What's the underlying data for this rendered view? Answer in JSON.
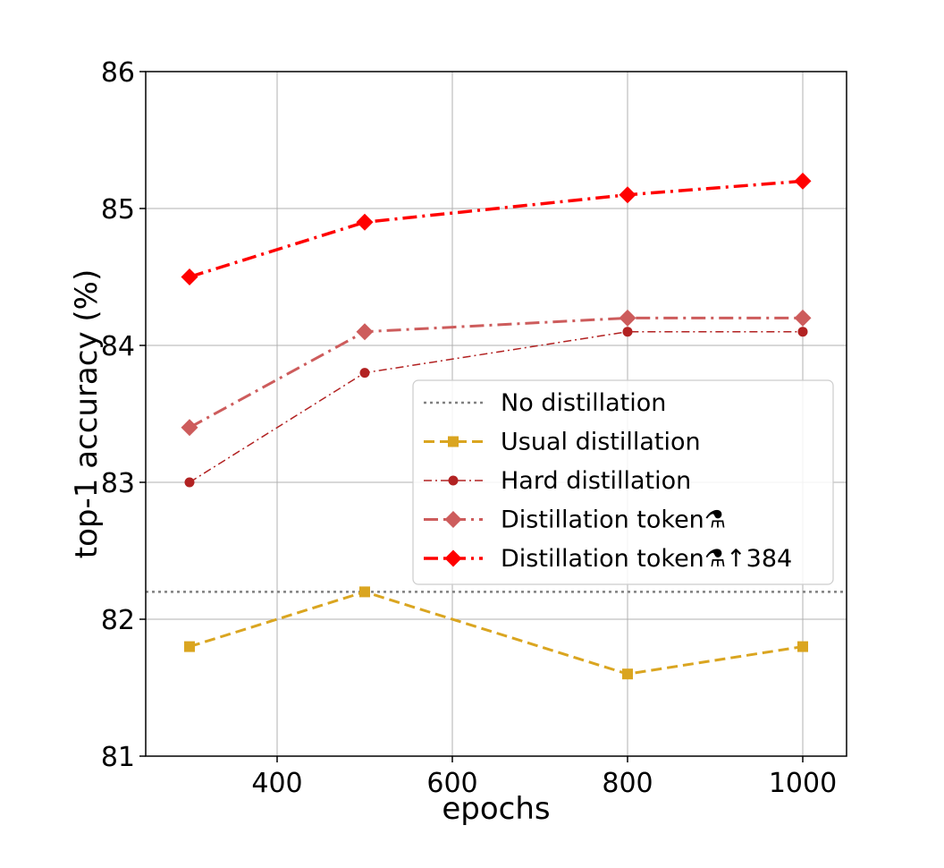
{
  "chart_data": {
    "type": "line",
    "title": "",
    "xlabel": "epochs",
    "ylabel": "top-1 accuracy (%)",
    "xlim": [
      250,
      1050
    ],
    "ylim": [
      81,
      86
    ],
    "xticks": [
      400,
      600,
      800,
      1000
    ],
    "yticks": [
      81,
      82,
      83,
      84,
      85,
      86
    ],
    "grid": true,
    "legend_position": "center-right",
    "series": [
      {
        "name": "No distillation",
        "style": "dotted-hline",
        "color": "#808080",
        "y": 82.2
      },
      {
        "name": "Usual distillation",
        "style": "dashed",
        "marker": "square",
        "color": "#DAA520",
        "x": [
          300,
          500,
          800,
          1000
        ],
        "values": [
          81.8,
          82.2,
          81.6,
          81.8
        ]
      },
      {
        "name": "Hard distillation",
        "style": "dashdot-thin",
        "marker": "circle",
        "color": "#B22222",
        "x": [
          300,
          500,
          800,
          1000
        ],
        "values": [
          83.0,
          83.8,
          84.1,
          84.1
        ]
      },
      {
        "name": "Distillation token",
        "name_symbol": "⚗",
        "style": "dashdot",
        "marker": "diamond",
        "color": "#CD5C5C",
        "x": [
          300,
          500,
          800,
          1000
        ],
        "values": [
          83.4,
          84.1,
          84.2,
          84.2
        ]
      },
      {
        "name": "Distillation token",
        "name_symbol": "⚗↑384",
        "style": "dashdot-thick",
        "marker": "diamond",
        "color": "#FF0000",
        "x": [
          300,
          500,
          800,
          1000
        ],
        "values": [
          84.5,
          84.9,
          85.1,
          85.2
        ]
      }
    ]
  }
}
